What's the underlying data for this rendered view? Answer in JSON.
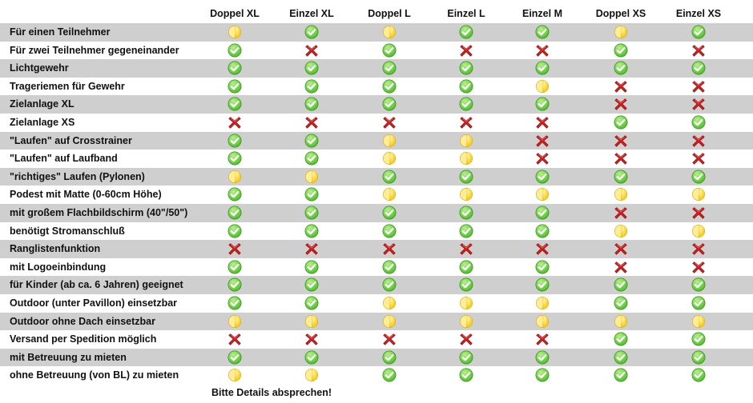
{
  "columns": [
    "Doppel XL",
    "Einzel XL",
    "Doppel L",
    "Einzel L",
    "Einzel M",
    "Doppel XS",
    "Einzel XS"
  ],
  "legend": {
    "yes": "check-icon",
    "no": "cross-icon",
    "partial": "half-circle-icon"
  },
  "colors": {
    "row_shade": "#cfcfcf",
    "check_green": "#4fbf2a",
    "cross_red": "#d21e1e",
    "half_yellow": "#f2c200"
  },
  "rows": [
    {
      "label": "Für einen Teilnehmer",
      "values": [
        "partial",
        "yes",
        "partial",
        "yes",
        "yes",
        "partial",
        "yes"
      ]
    },
    {
      "label": "Für zwei Teilnehmer gegeneinander",
      "values": [
        "yes",
        "no",
        "yes",
        "no",
        "no",
        "yes",
        "no"
      ]
    },
    {
      "label": "Lichtgewehr",
      "values": [
        "yes",
        "yes",
        "yes",
        "yes",
        "yes",
        "yes",
        "yes"
      ]
    },
    {
      "label": "Trageriemen für Gewehr",
      "values": [
        "yes",
        "yes",
        "yes",
        "yes",
        "partial",
        "no",
        "no"
      ]
    },
    {
      "label": "Zielanlage XL",
      "values": [
        "yes",
        "yes",
        "yes",
        "yes",
        "yes",
        "no",
        "no"
      ]
    },
    {
      "label": "Zielanlage XS",
      "values": [
        "no",
        "no",
        "no",
        "no",
        "no",
        "yes",
        "yes"
      ]
    },
    {
      "label": "\"Laufen\" auf Crosstrainer",
      "values": [
        "yes",
        "yes",
        "partial",
        "partial",
        "no",
        "no",
        "no"
      ]
    },
    {
      "label": "\"Laufen\" auf Laufband",
      "values": [
        "yes",
        "yes",
        "partial",
        "partial",
        "no",
        "no",
        "no"
      ]
    },
    {
      "label": "\"richtiges\" Laufen (Pylonen)",
      "values": [
        "partial",
        "partial",
        "yes",
        "yes",
        "yes",
        "yes",
        "yes"
      ]
    },
    {
      "label": "Podest mit Matte (0-60cm Höhe)",
      "values": [
        "yes",
        "yes",
        "partial",
        "partial",
        "partial",
        "partial",
        "partial"
      ]
    },
    {
      "label": "mit großem Flachbildschirm (40\"/50\")",
      "values": [
        "yes",
        "yes",
        "yes",
        "yes",
        "yes",
        "no",
        "no"
      ]
    },
    {
      "label": "benötigt Stromanschluß",
      "values": [
        "yes",
        "yes",
        "yes",
        "yes",
        "yes",
        "partial",
        "partial"
      ]
    },
    {
      "label": "Ranglistenfunktion",
      "values": [
        "no",
        "no",
        "no",
        "no",
        "no",
        "no",
        "no"
      ]
    },
    {
      "label": "mit Logoeinbindung",
      "values": [
        "yes",
        "yes",
        "yes",
        "yes",
        "yes",
        "no",
        "no"
      ]
    },
    {
      "label": "für Kinder (ab ca. 6 Jahren) geeignet",
      "values": [
        "yes",
        "yes",
        "yes",
        "yes",
        "yes",
        "yes",
        "yes"
      ]
    },
    {
      "label": "Outdoor (unter Pavillon) einsetzbar",
      "values": [
        "yes",
        "yes",
        "partial",
        "partial",
        "partial",
        "yes",
        "yes"
      ]
    },
    {
      "label": "Outdoor ohne Dach einsetzbar",
      "values": [
        "partial",
        "partial",
        "partial",
        "partial",
        "partial",
        "partial",
        "partial"
      ]
    },
    {
      "label": "Versand per Spedition möglich",
      "values": [
        "no",
        "no",
        "no",
        "no",
        "no",
        "yes",
        "yes"
      ]
    },
    {
      "label": "mit Betreuung zu mieten",
      "values": [
        "yes",
        "yes",
        "yes",
        "yes",
        "yes",
        "yes",
        "yes"
      ]
    },
    {
      "label": "ohne Betreuung (von BL) zu mieten",
      "values": [
        "partial",
        "partial",
        "yes",
        "yes",
        "yes",
        "yes",
        "yes"
      ]
    }
  ],
  "footer_note": "Bitte Details absprechen!"
}
